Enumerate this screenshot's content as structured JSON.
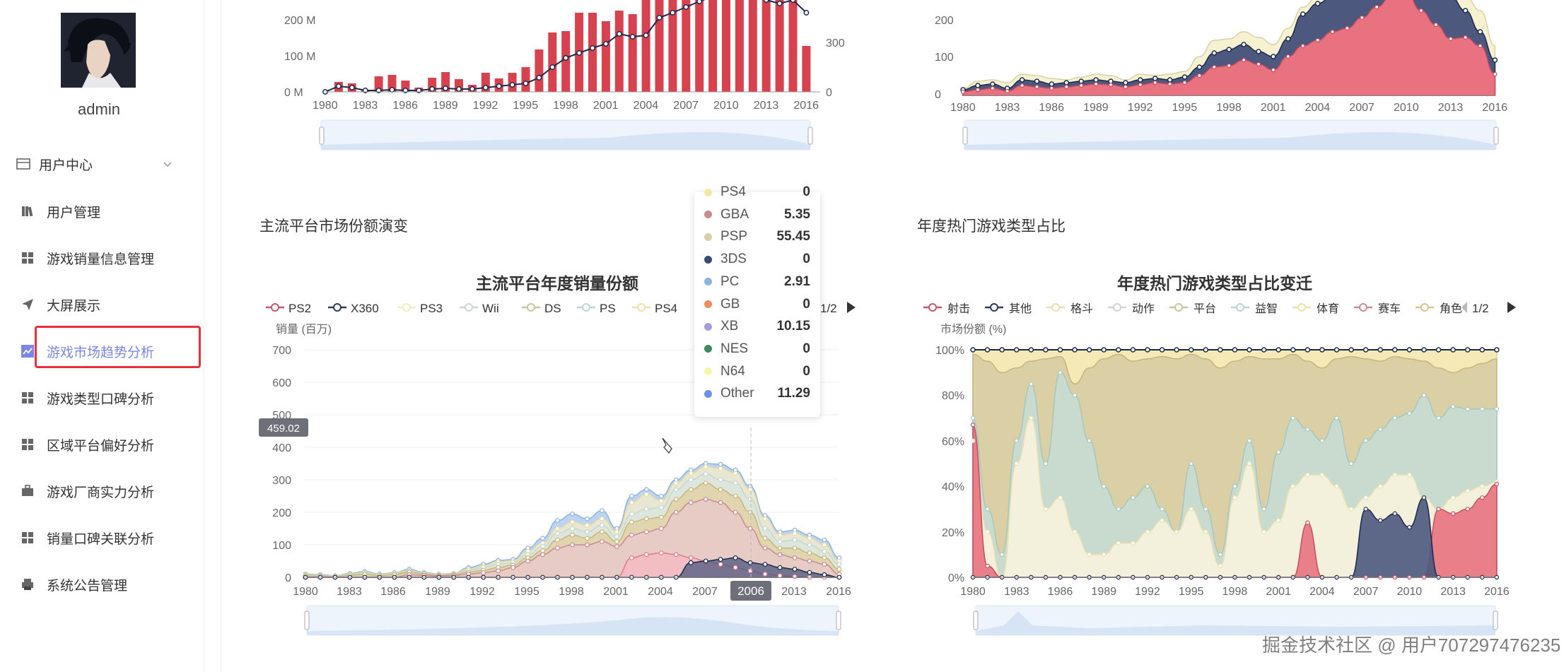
{
  "sidebar": {
    "username": "admin",
    "group_label": "用户中心",
    "items": [
      {
        "label": "用户管理",
        "icon": "book-icon"
      },
      {
        "label": "游戏销量信息管理",
        "icon": "grid-icon"
      },
      {
        "label": "大屏展示",
        "icon": "send-icon"
      },
      {
        "label": "游戏市场趋势分析",
        "icon": "chart-icon",
        "active": true
      },
      {
        "label": "游戏类型口碑分析",
        "icon": "grid-icon"
      },
      {
        "label": "区域平台偏好分析",
        "icon": "grid-icon"
      },
      {
        "label": "游戏厂商实力分析",
        "icon": "briefcase-icon"
      },
      {
        "label": "销量口碑关联分析",
        "icon": "grid-icon"
      },
      {
        "label": "系统公告管理",
        "icon": "printer-icon"
      }
    ]
  },
  "sections": {
    "platform_title": "主流平台市场份额演变",
    "genre_title": "年度热门游戏类型占比"
  },
  "top_left_chart": {
    "y_ticks": [
      "200 M",
      "100 M",
      "0 M"
    ],
    "y2_ticks": [
      "300",
      "0"
    ],
    "x_ticks": [
      "1980",
      "1983",
      "1986",
      "1989",
      "1992",
      "1995",
      "1998",
      "2001",
      "2004",
      "2007",
      "2010",
      "2013",
      "2016"
    ]
  },
  "top_right_chart": {
    "y_ticks": [
      "200",
      "100",
      "0"
    ],
    "x_ticks": [
      "1980",
      "1983",
      "1986",
      "1989",
      "1992",
      "1995",
      "1998",
      "2001",
      "2004",
      "2007",
      "2010",
      "2013",
      "2016"
    ]
  },
  "platform_chart": {
    "title": "主流平台年度销量份额",
    "legend": [
      {
        "name": "PS2",
        "color": "#c4586e"
      },
      {
        "name": "X360",
        "color": "#2f3a5c"
      },
      {
        "name": "PS3",
        "color": "#f3ecc4"
      },
      {
        "name": "Wii",
        "color": "#cfd6d2"
      },
      {
        "name": "DS",
        "color": "#c7c79c"
      },
      {
        "name": "PS",
        "color": "#b9d6d2"
      },
      {
        "name": "PS4",
        "color": "#f0e0a8"
      }
    ],
    "pager": "1/2",
    "y_axis_name": "销量 (百万)",
    "y_ticks": [
      "700",
      "600",
      "500",
      "400",
      "300",
      "200",
      "100",
      "0"
    ],
    "x_ticks": [
      "1980",
      "1983",
      "1986",
      "1989",
      "1992",
      "1995",
      "1998",
      "2001",
      "2004",
      "2007",
      "2013",
      "2016"
    ],
    "crosshair_y_label": "459.02",
    "crosshair_x_label": "2006"
  },
  "tooltip": [
    {
      "name": "PS4",
      "value": "0",
      "color": "#f3e6a6"
    },
    {
      "name": "GBA",
      "value": "5.35",
      "color": "#c98a92"
    },
    {
      "name": "PSP",
      "value": "55.45",
      "color": "#dccfa8"
    },
    {
      "name": "3DS",
      "value": "0",
      "color": "#3c4a78"
    },
    {
      "name": "PC",
      "value": "2.91",
      "color": "#8fb3e0"
    },
    {
      "name": "GB",
      "value": "0",
      "color": "#f08c5a"
    },
    {
      "name": "XB",
      "value": "10.15",
      "color": "#a99ae0"
    },
    {
      "name": "NES",
      "value": "0",
      "color": "#3d8a63"
    },
    {
      "name": "N64",
      "value": "0",
      "color": "#f7f5a8"
    },
    {
      "name": "Other",
      "value": "11.29",
      "color": "#6f8fe6"
    }
  ],
  "genre_chart": {
    "title": "年度热门游戏类型占比变迁",
    "legend": [
      {
        "name": "射击",
        "color": "#c4586e"
      },
      {
        "name": "其他",
        "color": "#2f3a5c"
      },
      {
        "name": "格斗",
        "color": "#f6f1d0"
      },
      {
        "name": "动作",
        "color": "#cfd6d2"
      },
      {
        "name": "平台",
        "color": "#c7c79c"
      },
      {
        "name": "益智",
        "color": "#b9d6d2"
      },
      {
        "name": "体育",
        "color": "#f0e0a8"
      },
      {
        "name": "赛车",
        "color": "#c98a92"
      },
      {
        "name": "角色",
        "color": "#d8c48e"
      }
    ],
    "pager": "1/2",
    "y_axis_name": "市场份额 (%)",
    "y_ticks": [
      "100%",
      "80%",
      "60%",
      "40%",
      "20%",
      "0%"
    ],
    "x_ticks": [
      "1980",
      "1983",
      "1986",
      "1989",
      "1992",
      "1995",
      "1998",
      "2001",
      "2004",
      "2007",
      "2010",
      "2013",
      "2016"
    ]
  },
  "watermark": "掘金技术社区 @ 用户707297476235"
}
